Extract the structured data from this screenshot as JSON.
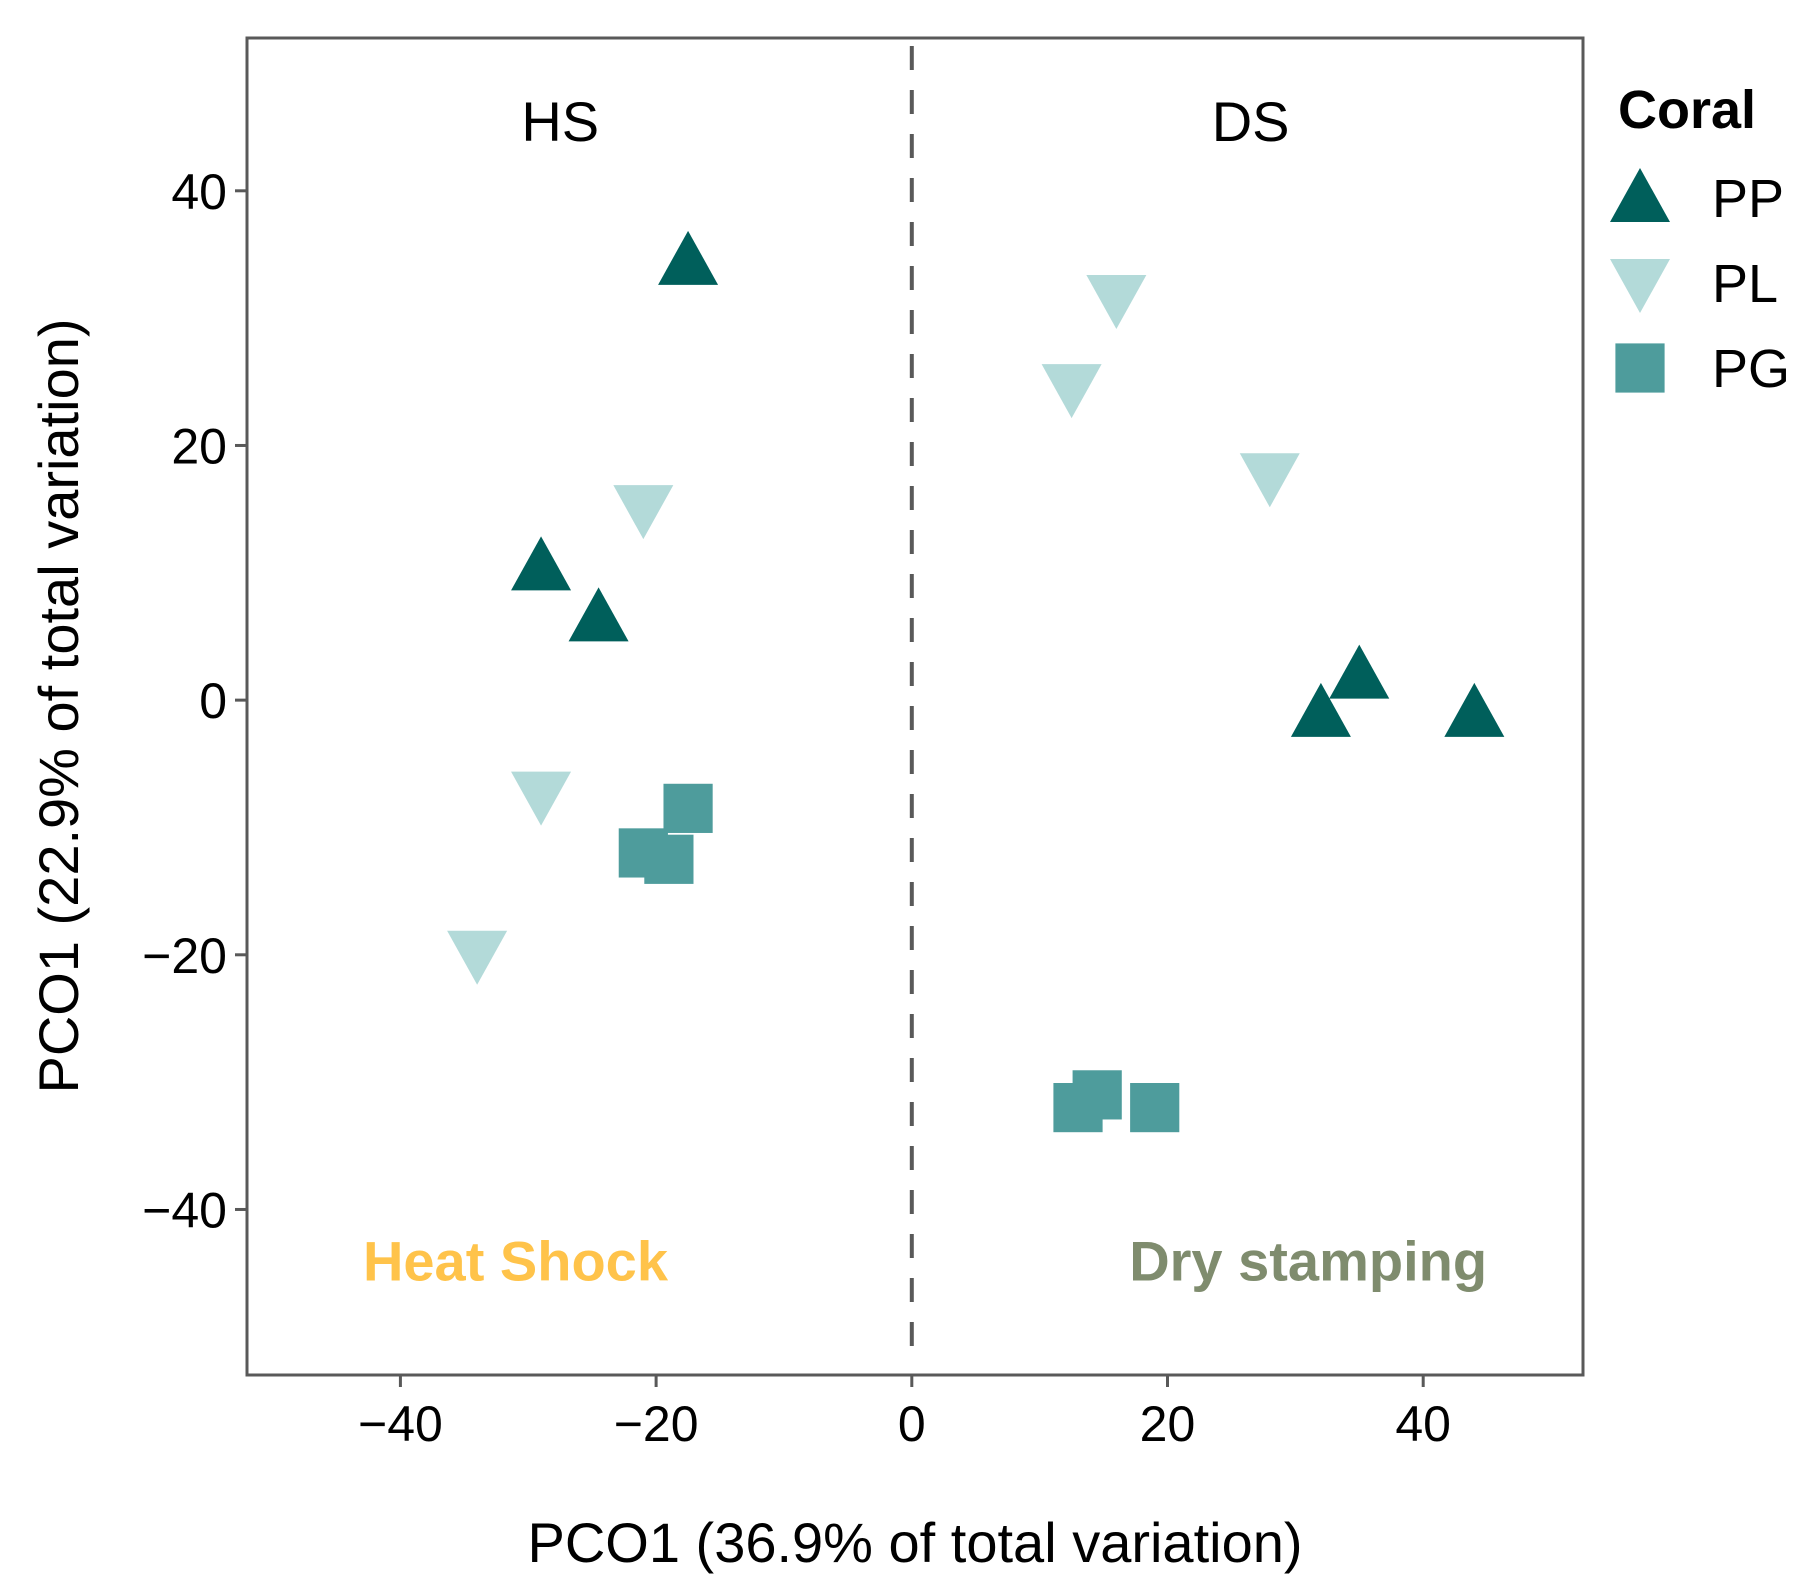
{
  "chart_data": {
    "type": "scatter",
    "title": "",
    "xlabel": "PCO1 (36.9% of total variation)",
    "ylabel": "PCO1 (22.9% of total variation)",
    "xlim": [
      -52,
      52.5
    ],
    "ylim": [
      -53,
      52
    ],
    "xticks": [
      -40,
      -20,
      0,
      20,
      40
    ],
    "xtick_labels": [
      "−40",
      "−20",
      "0",
      "20",
      "40"
    ],
    "yticks": [
      -40,
      -20,
      0,
      20,
      40
    ],
    "ytick_labels": [
      "−40",
      "−20",
      "0",
      "20",
      "40"
    ],
    "grid": false,
    "vline": {
      "x": 0,
      "style": "dashed",
      "color": "#595959"
    },
    "region_labels": [
      {
        "text": "HS",
        "x": -27.5,
        "y": 45.5
      },
      {
        "text": "DS",
        "x": 26.5,
        "y": 45.5
      }
    ],
    "annotations": [
      {
        "text": "Heat Shock",
        "x": -31,
        "y": -44,
        "color": "#FFC34A"
      },
      {
        "text": "Dry stamping",
        "x": 31,
        "y": -44,
        "color": "#7F8C6E"
      }
    ],
    "legend": {
      "title": "Coral",
      "position": "right"
    },
    "series": [
      {
        "name": "PP",
        "marker": "triangle-up",
        "color": "#005F5B",
        "points": [
          {
            "x": -17.5,
            "y": 34.5
          },
          {
            "x": -29.0,
            "y": 10.5
          },
          {
            "x": -24.5,
            "y": 6.5
          },
          {
            "x": 35.0,
            "y": 2.0
          },
          {
            "x": 32.0,
            "y": -1.0
          },
          {
            "x": 44.0,
            "y": -1.0
          }
        ]
      },
      {
        "name": "PL",
        "marker": "triangle-down",
        "color": "#B3DAD9",
        "points": [
          {
            "x": 16.0,
            "y": 31.5
          },
          {
            "x": 12.5,
            "y": 24.5
          },
          {
            "x": 28.0,
            "y": 17.5
          },
          {
            "x": -21.0,
            "y": 15.0
          },
          {
            "x": -29.0,
            "y": -7.5
          },
          {
            "x": -34.0,
            "y": -20.0
          }
        ]
      },
      {
        "name": "PG",
        "marker": "square",
        "color": "#4E9C9C",
        "points": [
          {
            "x": -17.5,
            "y": -8.5
          },
          {
            "x": -21.0,
            "y": -12.0
          },
          {
            "x": -19.0,
            "y": -12.5
          },
          {
            "x": 13.0,
            "y": -32.0
          },
          {
            "x": 14.5,
            "y": -31.0
          },
          {
            "x": 19.0,
            "y": -32.0
          }
        ]
      }
    ]
  }
}
